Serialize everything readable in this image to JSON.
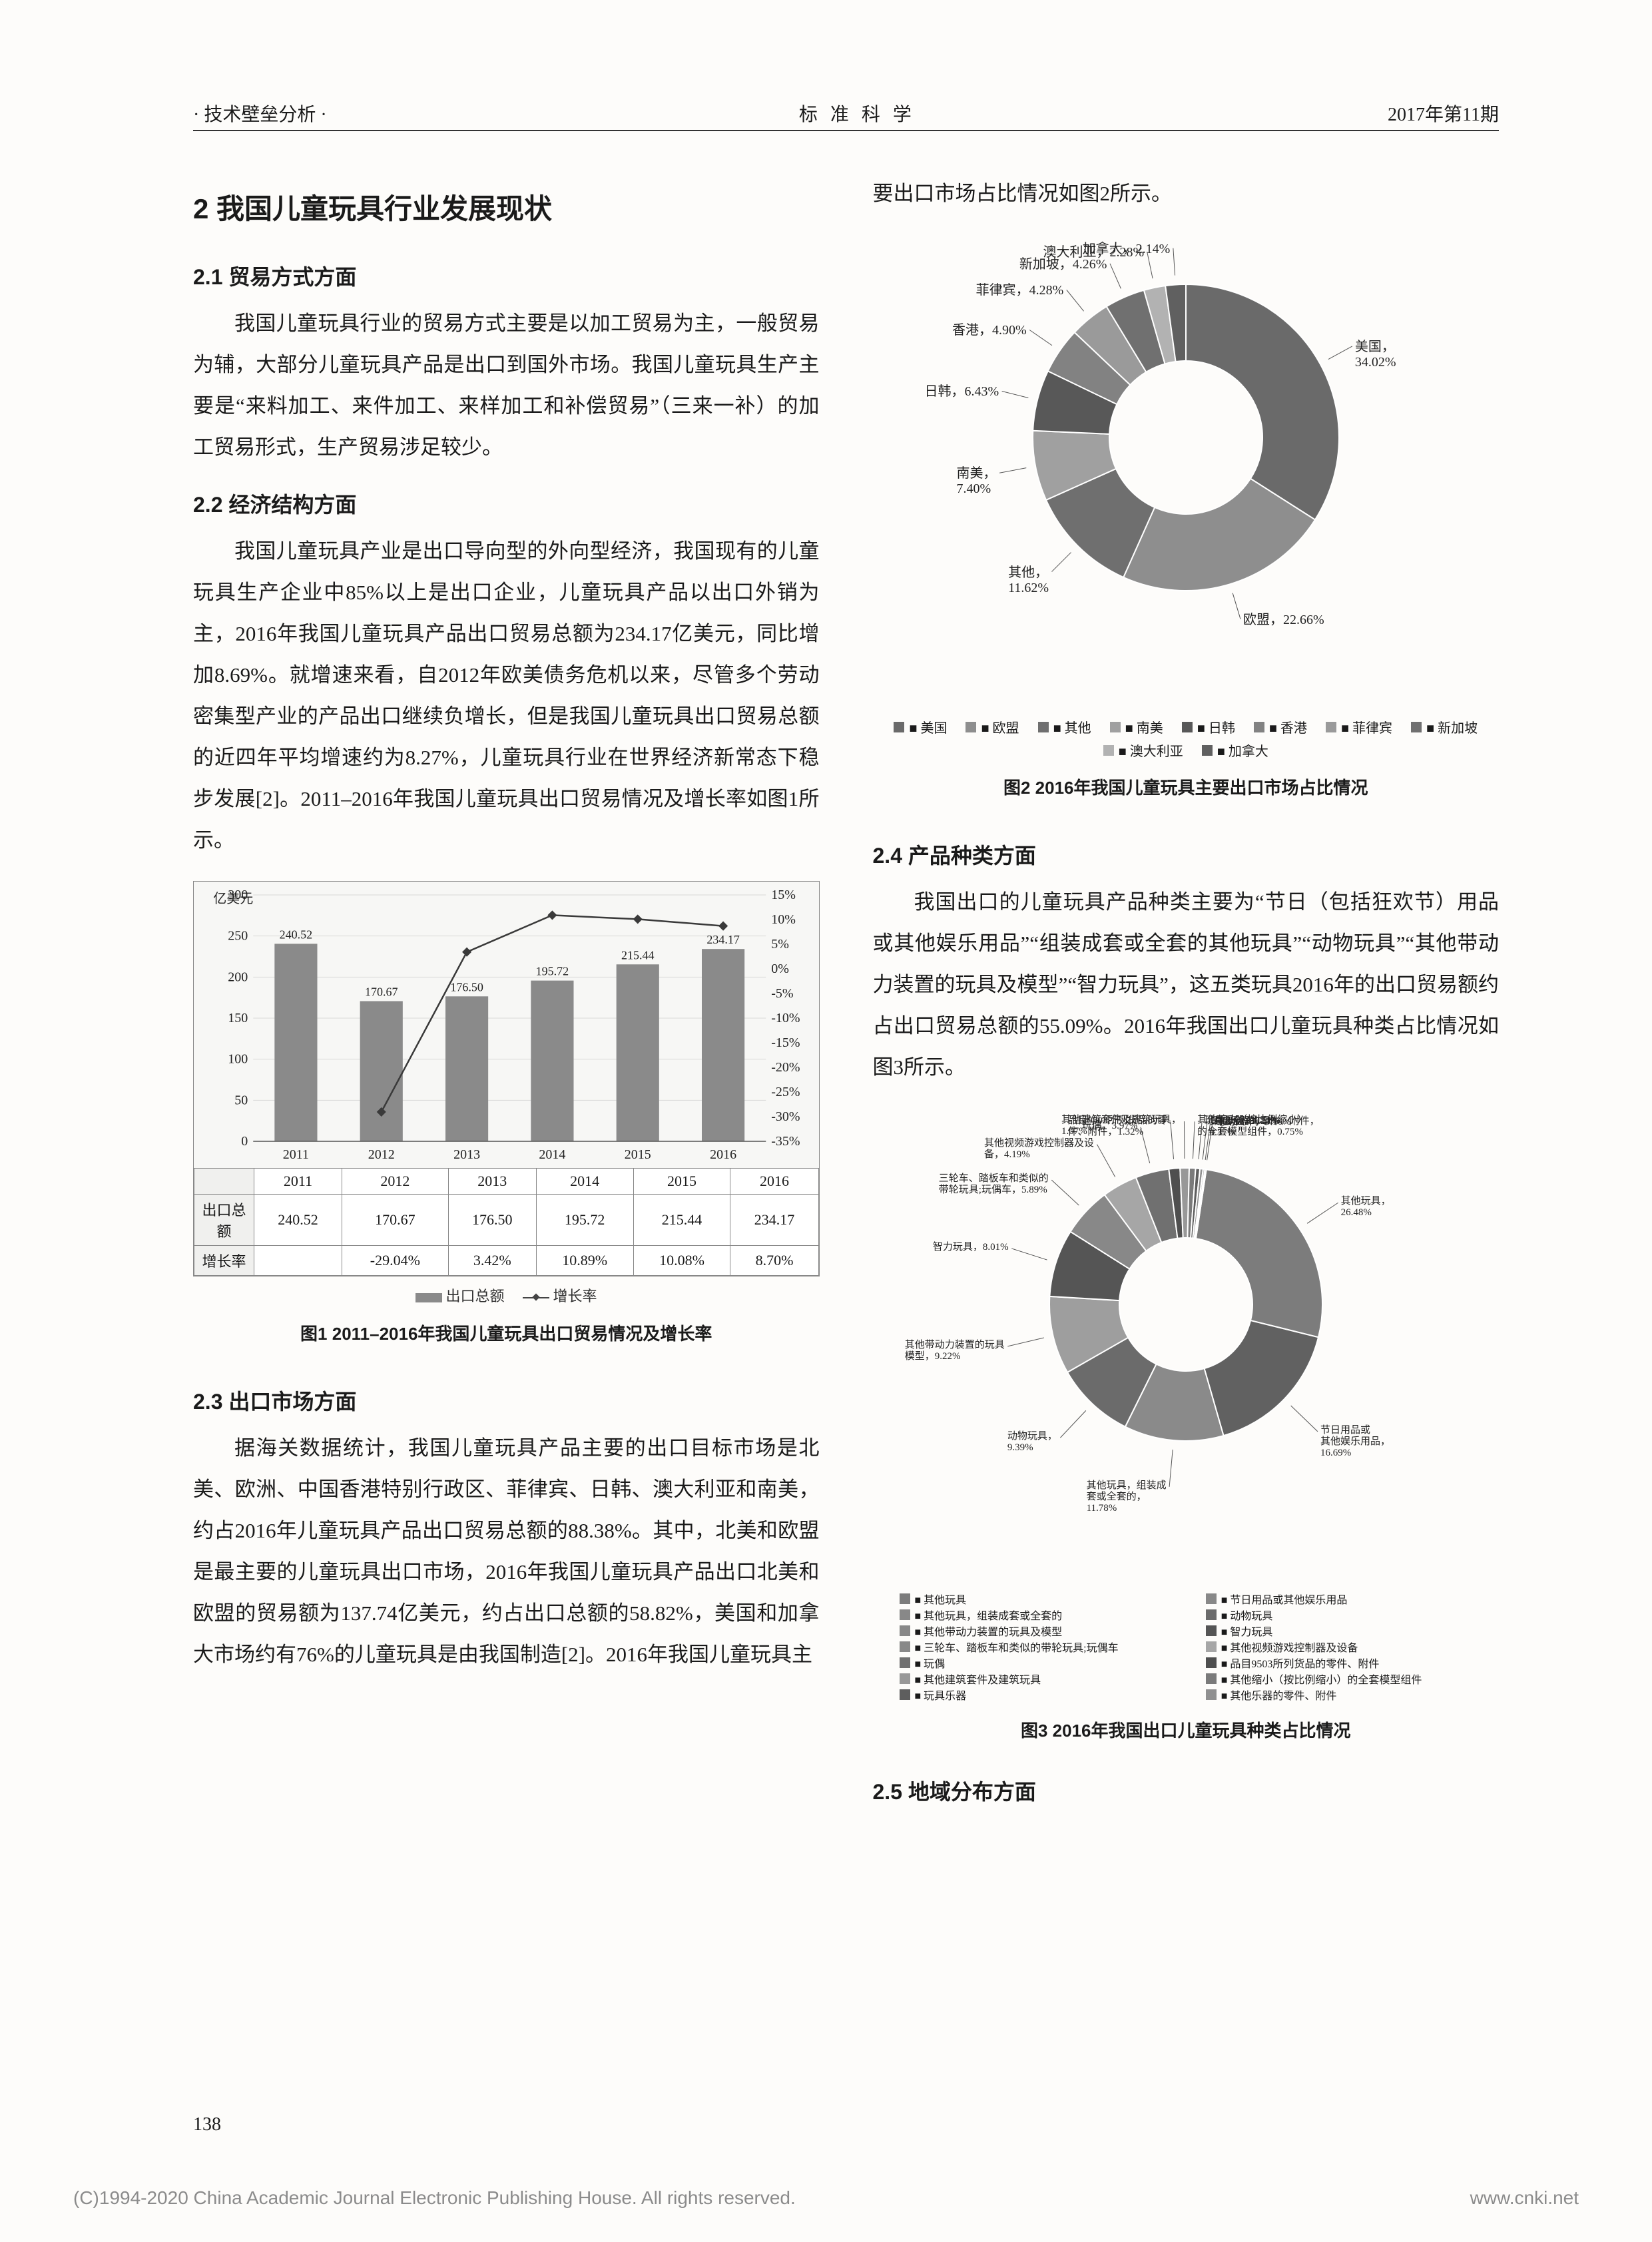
{
  "header": {
    "left": "· 技术壁垒分析 ·",
    "center": "标 准 科 学",
    "right": "2017年第11期"
  },
  "left_column": {
    "section_title": "2 我国儿童玩具行业发展现状",
    "s21_title": "2.1 贸易方式方面",
    "s21_body": "我国儿童玩具行业的贸易方式主要是以加工贸易为主，一般贸易为辅，大部分儿童玩具产品是出口到国外市场。我国儿童玩具生产主要是“来料加工、来件加工、来样加工和补偿贸易”（三来一补）的加工贸易形式，生产贸易涉足较少。",
    "s22_title": "2.2 经济结构方面",
    "s22_body": "我国儿童玩具产业是出口导向型的外向型经济，我国现有的儿童玩具生产企业中85%以上是出口企业，儿童玩具产品以出口外销为主，2016年我国儿童玩具产品出口贸易总额为234.17亿美元，同比增加8.69%。就增速来看，自2012年欧美债务危机以来，尽管多个劳动密集型产业的产品出口继续负增长，但是我国儿童玩具出口贸易总额的近四年平均增速约为8.27%，儿童玩具行业在世界经济新常态下稳步发展[2]。2011–2016年我国儿童玩具出口贸易情况及增长率如图1所示。",
    "s23_title": "2.3 出口市场方面",
    "s23_body": "据海关数据统计，我国儿童玩具产品主要的出口目标市场是北美、欧洲、中国香港特别行政区、菲律宾、日韩、澳大利亚和南美，约占2016年儿童玩具产品出口贸易总额的88.38%。其中，北美和欧盟是最主要的儿童玩具出口市场，2016年我国儿童玩具产品出口北美和欧盟的贸易额为137.74亿美元，约占出口总额的58.82%，美国和加拿大市场约有76%的儿童玩具是由我国制造[2]。2016年我国儿童玩具主"
  },
  "right_column": {
    "top_line": "要出口市场占比情况如图2所示。",
    "s24_title": "2.4 产品种类方面",
    "s24_body": "我国出口的儿童玩具产品种类主要为“节日（包括狂欢节）用品或其他娱乐用品”“组装成套或全套的其他玩具”“动物玩具”“其他带动力装置的玩具及模型”“智力玩具”，这五类玩具2016年的出口贸易额约占出口贸易总额的55.09%。2016年我国出口儿童玩具种类占比情况如图3所示。",
    "s25_title": "2.5 地域分布方面"
  },
  "fig1": {
    "type": "bar+line",
    "caption": "图1  2011–2016年我国儿童玩具出口贸易情况及增长率",
    "y_left_label": "亿美元",
    "years": [
      "2011",
      "2012",
      "2013",
      "2014",
      "2015",
      "2016"
    ],
    "totals": [
      240.52,
      170.67,
      176.5,
      195.72,
      215.44,
      234.17
    ],
    "growth": [
      null,
      -29.04,
      3.42,
      10.89,
      10.08,
      8.7
    ],
    "y_left_ticks": [
      0,
      50,
      100,
      150,
      200,
      250,
      300
    ],
    "y_right_ticks": [
      15,
      10,
      5,
      0,
      -5,
      -10,
      -15,
      -20,
      -25,
      -30,
      -35
    ],
    "bar_color": "#8a8a8a",
    "line_color": "#3a3a3a",
    "grid_color": "#d9d9d7",
    "row1_label": "出口总额",
    "row2_label": "增长率",
    "row1_values": [
      "240.52",
      "170.67",
      "176.50",
      "195.72",
      "215.44",
      "234.17"
    ],
    "row2_values": [
      "",
      "-29.04%",
      "3.42%",
      "10.89%",
      "10.08%",
      "8.70%"
    ],
    "legend_bar": "出口总额",
    "legend_line": "增长率"
  },
  "fig2": {
    "type": "donut",
    "caption": "图2 2016年我国儿童玩具主要出口市场占比情况",
    "series": [
      {
        "label": "美国",
        "value": 34.02,
        "color": "#6a6a6a",
        "tag": "美国，\n34.02%"
      },
      {
        "label": "欧盟",
        "value": 22.66,
        "color": "#8e8e8e",
        "tag": "欧盟，22.66%"
      },
      {
        "label": "其他",
        "value": 11.62,
        "color": "#6f6f6f",
        "tag": "其他，\n11.62%"
      },
      {
        "label": "南美",
        "value": 7.4,
        "color": "#a0a0a0",
        "tag": "南美，\n7.40%"
      },
      {
        "label": "日韩",
        "value": 6.43,
        "color": "#585858",
        "tag": "日韩，6.43%"
      },
      {
        "label": "香港",
        "value": 4.9,
        "color": "#828282",
        "tag": "香港，4.90%"
      },
      {
        "label": "菲律宾",
        "value": 4.28,
        "color": "#9a9a9a",
        "tag": "菲律宾，4.28%"
      },
      {
        "label": "新加坡",
        "value": 4.26,
        "color": "#707070",
        "tag": "新加坡，4.26%"
      },
      {
        "label": "澳大利亚",
        "value": 2.28,
        "color": "#b2b2b2",
        "tag": "澳大利亚，2.28%"
      },
      {
        "label": "加拿大",
        "value": 2.14,
        "color": "#606060",
        "tag": "加拿大，2.14%"
      }
    ],
    "legend_order": [
      "美国",
      "欧盟",
      "其他",
      "南美",
      "日韩",
      "香港",
      "菲律宾",
      "新加坡",
      "澳大利亚",
      "加拿大"
    ]
  },
  "fig3": {
    "type": "donut",
    "caption": "图3  2016年我国出口儿童玩具种类占比情况",
    "series": [
      {
        "label": "其他玩具",
        "value": 26.48,
        "color": "#7c7c7c",
        "tag": "其他玩具，\n26.48%"
      },
      {
        "label": "节日用品或\n其他娱乐用品",
        "value": 16.69,
        "color": "#616161",
        "tag": "节日用品或\n其他娱乐用品，\n16.69%"
      },
      {
        "label": "其他玩具，组装成\n套或全套的",
        "value": 11.78,
        "color": "#8a8a8a",
        "tag": "其他玩具，组装成\n套或全套的，\n11.78%"
      },
      {
        "label": "动物玩具",
        "value": 9.39,
        "color": "#6b6b6b",
        "tag": "动物玩具，\n9.39%"
      },
      {
        "label": "其他带动力装置的玩具\n及模型",
        "value": 9.22,
        "color": "#9e9e9e",
        "tag": "其他带动力装置的玩具\n模型，9.22%"
      },
      {
        "label": "智力玩具",
        "value": 8.01,
        "color": "#555555",
        "tag": "智力玩具，8.01%"
      },
      {
        "label": "三轮车、踏板车和类似的\n带轮玩具;玩偶车",
        "value": 5.89,
        "color": "#888888",
        "tag": "三轮车、踏板车和类似的\n带轮玩具;玩偶车，5.89%"
      },
      {
        "label": "其他视频游戏控制器及设备",
        "value": 4.19,
        "color": "#a6a6a6",
        "tag": "其他视频游戏控制器及设\n备，4.19%"
      },
      {
        "label": "玩偶",
        "value": 3.97,
        "color": "#707070",
        "tag": "玩偶，3.97%"
      },
      {
        "label": "品目9503所列货品的零件、附件",
        "value": 1.32,
        "color": "#4f4f4f",
        "tag": "品目9503所列货品的零\n件、附件，1.32%"
      },
      {
        "label": "其他建筑套件及建筑玩具",
        "value": 1.07,
        "color": "#989898",
        "tag": "其他建筑套件及建筑玩具，\n1.07%"
      },
      {
        "label": "其他缩小（按比例缩小）的全套模型组件",
        "value": 0.75,
        "color": "#7a7a7a",
        "tag": "其他缩小（按比例缩小）\n的全套模型组件，0.75%"
      },
      {
        "label": "玩具乐器",
        "value": 0.51,
        "color": "#5e5e5e",
        "tag": "玩具乐器，0.51%"
      },
      {
        "label": "其他乐器的零件、附件",
        "value": 0.37,
        "color": "#909090",
        "tag": "其他乐器的零件、附件，\n0.37%"
      },
      {
        "label": "百音盒",
        "value": 0.21,
        "color": "#b0b0b0",
        "tag": "百音盒，0.21%"
      },
      {
        "label": "电动火车",
        "value": 0.16,
        "color": "#505050",
        "tag": "电动火车，0.16%"
      }
    ],
    "legend_groups": [
      [
        "其他玩具",
        "其他玩具，组装成套或全套的",
        "其他带动力装置的玩具及模型",
        "三轮车、踏板车和类似的带轮玩具;玩偶车",
        "玩偶",
        "其他建筑套件及建筑玩具",
        "玩具乐器"
      ],
      [
        "节日用品或其他娱乐用品",
        "动物玩具",
        "智力玩具",
        "其他视频游戏控制器及设备",
        "品目9503所列货品的零件、附件",
        "其他缩小（按比例缩小）的全套模型组件",
        "其他乐器的零件、附件"
      ]
    ]
  },
  "page_number": "138",
  "footer_left": "(C)1994-2020 China Academic Journal Electronic Publishing House. All rights reserved.",
  "footer_right": "www.cnki.net"
}
